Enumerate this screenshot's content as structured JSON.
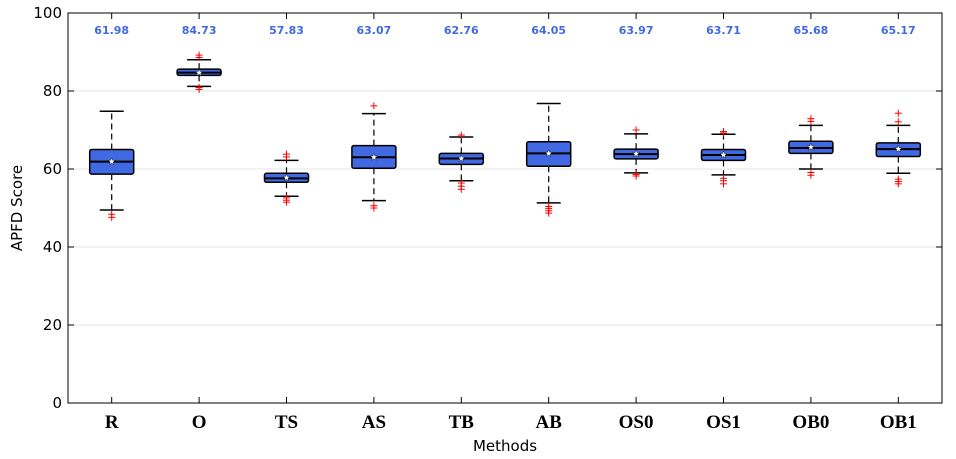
{
  "chart_data": {
    "type": "boxplot",
    "xlabel": "Methods",
    "ylabel": "APFD Score",
    "ylim": [
      0,
      100
    ],
    "yticks": [
      0,
      20,
      40,
      60,
      80,
      100
    ],
    "grid": "horizontal",
    "colors": {
      "box_fill": "#4169e1",
      "box_edge": "#000000",
      "median": "#000000",
      "outlier": "#ff0000",
      "mean_marker": "#ffffff",
      "mean_label": "#4169e1",
      "grid": "#e6e6e6"
    },
    "categories": [
      "R",
      "O",
      "TS",
      "AS",
      "TB",
      "AB",
      "OS0",
      "OS1",
      "OB0",
      "OB1"
    ],
    "boxes": [
      {
        "label": "R",
        "mean_label": "61.98",
        "mean": 61.98,
        "median": 61.9,
        "q1": 58.7,
        "q3": 65.0,
        "whisker_low": 49.5,
        "whisker_high": 74.8,
        "outliers": [
          47.6,
          48.4
        ]
      },
      {
        "label": "O",
        "mean_label": "84.73",
        "mean": 84.73,
        "median": 84.7,
        "q1": 84.0,
        "q3": 85.6,
        "whisker_low": 81.2,
        "whisker_high": 88.0,
        "outliers": [
          80.4,
          80.9,
          88.6,
          89.2
        ]
      },
      {
        "label": "TS",
        "mean_label": "57.83",
        "mean": 57.83,
        "median": 57.6,
        "q1": 56.6,
        "q3": 58.9,
        "whisker_low": 53.0,
        "whisker_high": 62.2,
        "outliers": [
          51.5,
          52.0,
          52.6,
          63.1,
          63.8
        ]
      },
      {
        "label": "AS",
        "mean_label": "63.07",
        "mean": 63.07,
        "median": 63.0,
        "q1": 60.2,
        "q3": 66.0,
        "whisker_low": 51.9,
        "whisker_high": 74.2,
        "outliers": [
          50.0,
          50.6,
          76.2
        ]
      },
      {
        "label": "TB",
        "mean_label": "62.76",
        "mean": 62.76,
        "median": 62.7,
        "q1": 61.2,
        "q3": 64.0,
        "whisker_low": 57.0,
        "whisker_high": 68.2,
        "outliers": [
          54.8,
          55.6,
          56.4,
          68.7
        ]
      },
      {
        "label": "AB",
        "mean_label": "64.05",
        "mean": 64.05,
        "median": 64.0,
        "q1": 60.7,
        "q3": 67.0,
        "whisker_low": 51.3,
        "whisker_high": 76.8,
        "outliers": [
          48.7,
          49.3,
          49.9,
          50.4
        ]
      },
      {
        "label": "OS0",
        "mean_label": "63.97",
        "mean": 63.97,
        "median": 63.8,
        "q1": 62.6,
        "q3": 65.1,
        "whisker_low": 59.0,
        "whisker_high": 69.0,
        "outliers": [
          58.2,
          58.6,
          70.0
        ]
      },
      {
        "label": "OS1",
        "mean_label": "63.71",
        "mean": 63.71,
        "median": 63.6,
        "q1": 62.2,
        "q3": 65.0,
        "whisker_low": 58.5,
        "whisker_high": 68.9,
        "outliers": [
          56.2,
          57.0,
          57.6,
          69.2,
          69.6
        ]
      },
      {
        "label": "OB0",
        "mean_label": "65.68",
        "mean": 65.68,
        "median": 65.4,
        "q1": 64.0,
        "q3": 67.1,
        "whisker_low": 60.0,
        "whisker_high": 71.2,
        "outliers": [
          58.4,
          59.1,
          72.2,
          72.9
        ]
      },
      {
        "label": "OB1",
        "mean_label": "65.17",
        "mean": 65.17,
        "median": 65.1,
        "q1": 63.2,
        "q3": 66.7,
        "whisker_low": 58.9,
        "whisker_high": 71.2,
        "outliers": [
          56.2,
          56.8,
          57.4,
          72.1,
          74.3
        ]
      }
    ]
  }
}
